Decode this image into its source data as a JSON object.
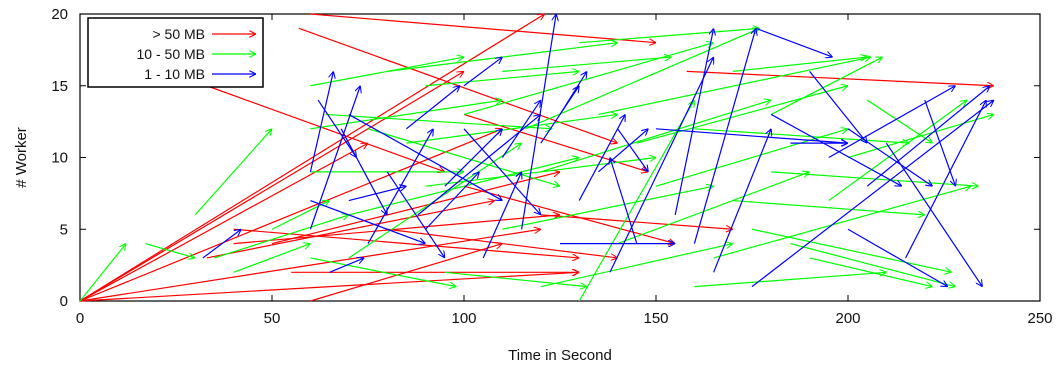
{
  "chart_data": {
    "type": "scatter",
    "title": "",
    "xlabel": "Time in Second",
    "ylabel": "# Worker",
    "xlim": [
      0,
      250
    ],
    "ylim": [
      0,
      20
    ],
    "xticks": [
      0,
      50,
      100,
      150,
      200,
      250
    ],
    "yticks": [
      0,
      5,
      10,
      15,
      20
    ],
    "grid": false,
    "legend_position": "top-left",
    "legend": [
      {
        "label": "> 50 MB",
        "color": "#ff0000"
      },
      {
        "label": "10 - 50 MB",
        "color": "#00ff00"
      },
      {
        "label": "1 - 10 MB",
        "color": "#0000ff"
      }
    ],
    "series": [
      {
        "name": "> 50 MB",
        "color": "#ff0000",
        "arrows": [
          [
            0,
            0,
            75,
            11
          ],
          [
            0,
            0,
            100,
            16
          ],
          [
            0,
            0,
            121,
            20
          ],
          [
            0,
            0,
            110,
            12
          ],
          [
            0,
            0,
            130,
            2
          ],
          [
            0,
            0,
            120,
            5
          ],
          [
            60,
            20,
            150,
            18
          ],
          [
            33,
            15,
            95,
            9
          ],
          [
            33,
            3,
            108,
            7
          ],
          [
            50,
            4,
            125,
            9
          ],
          [
            57,
            19,
            140,
            11
          ],
          [
            158,
            16,
            238,
            15
          ],
          [
            80,
            5,
            140,
            3
          ],
          [
            100,
            13,
            148,
            9
          ],
          [
            40,
            5,
            130,
            3
          ],
          [
            60,
            0,
            110,
            4
          ],
          [
            100,
            8,
            155,
            4
          ],
          [
            120,
            6,
            170,
            5
          ],
          [
            40,
            4,
            125,
            6
          ],
          [
            55,
            2,
            130,
            2
          ]
        ]
      },
      {
        "name": "10 - 50 MB",
        "color": "#00ff00",
        "arrows": [
          [
            0,
            0,
            12,
            4
          ],
          [
            17,
            4,
            30,
            3
          ],
          [
            30,
            6,
            50,
            12
          ],
          [
            35,
            3,
            70,
            6
          ],
          [
            40,
            2,
            60,
            4
          ],
          [
            50,
            5,
            65,
            7
          ],
          [
            60,
            15,
            100,
            17
          ],
          [
            60,
            12,
            110,
            14
          ],
          [
            60,
            9,
            100,
            9
          ],
          [
            64,
            13,
            123,
            12
          ],
          [
            70,
            6,
            130,
            10
          ],
          [
            70,
            3,
            115,
            11
          ],
          [
            80,
            16,
            140,
            18
          ],
          [
            85,
            11,
            140,
            13
          ],
          [
            90,
            8,
            150,
            10
          ],
          [
            100,
            13,
            165,
            18
          ],
          [
            110,
            5,
            165,
            8
          ],
          [
            116,
            12,
            177,
            19
          ],
          [
            120,
            9,
            180,
            14
          ],
          [
            130,
            0,
            160,
            14
          ],
          [
            135,
            13,
            206,
            17
          ],
          [
            140,
            4,
            190,
            9
          ],
          [
            150,
            8,
            200,
            12
          ],
          [
            160,
            12,
            216,
            11
          ],
          [
            165,
            3,
            232,
            8
          ],
          [
            170,
            7,
            220,
            6
          ],
          [
            180,
            9,
            234,
            8
          ],
          [
            180,
            13,
            209,
            17
          ],
          [
            185,
            4,
            228,
            1
          ],
          [
            195,
            7,
            231,
            14
          ],
          [
            200,
            10,
            238,
            13
          ],
          [
            205,
            14,
            222,
            11
          ],
          [
            130,
            18,
            177,
            19
          ],
          [
            110,
            16,
            154,
            17
          ],
          [
            160,
            1,
            210,
            2
          ],
          [
            175,
            5,
            227,
            2
          ],
          [
            120,
            1,
            170,
            4
          ],
          [
            90,
            15,
            130,
            16
          ],
          [
            75,
            12,
            125,
            8
          ],
          [
            145,
            11,
            200,
            15
          ],
          [
            170,
            16,
            205,
            17
          ],
          [
            190,
            3,
            222,
            1
          ],
          [
            60,
            3,
            98,
            1
          ],
          [
            95,
            2,
            132,
            1
          ]
        ]
      },
      {
        "name": "1 - 10 MB",
        "color": "#0000ff",
        "arrows": [
          [
            32,
            3,
            42,
            5
          ],
          [
            60,
            9,
            66,
            16
          ],
          [
            60,
            5,
            73,
            15
          ],
          [
            62,
            14,
            72,
            10
          ],
          [
            65,
            2,
            74,
            3
          ],
          [
            68,
            12,
            80,
            6
          ],
          [
            70,
            7,
            85,
            8
          ],
          [
            75,
            4,
            92,
            12
          ],
          [
            80,
            9,
            95,
            3
          ],
          [
            85,
            12,
            99,
            15
          ],
          [
            90,
            5,
            104,
            9
          ],
          [
            95,
            8,
            110,
            12
          ],
          [
            100,
            15,
            110,
            17
          ],
          [
            105,
            3,
            115,
            9
          ],
          [
            110,
            10,
            120,
            14
          ],
          [
            115,
            5,
            124,
            20
          ],
          [
            120,
            11,
            130,
            15
          ],
          [
            125,
            13,
            132,
            16
          ],
          [
            130,
            7,
            142,
            13
          ],
          [
            135,
            9,
            148,
            12
          ],
          [
            140,
            12,
            148,
            9
          ],
          [
            145,
            4,
            138,
            10
          ],
          [
            155,
            6,
            165,
            19
          ],
          [
            160,
            4,
            176,
            19
          ],
          [
            165,
            2,
            180,
            12
          ],
          [
            176,
            19,
            196,
            17
          ],
          [
            180,
            13,
            214,
            8
          ],
          [
            185,
            11,
            200,
            11
          ],
          [
            190,
            16,
            205,
            11
          ],
          [
            195,
            10,
            228,
            15
          ],
          [
            200,
            5,
            226,
            1
          ],
          [
            205,
            8,
            237,
            15
          ],
          [
            210,
            11,
            235,
            1
          ],
          [
            215,
            3,
            236,
            14
          ],
          [
            220,
            14,
            228,
            8
          ],
          [
            175,
            1,
            238,
            14
          ],
          [
            125,
            4,
            155,
            4
          ],
          [
            70,
            13,
            110,
            7
          ],
          [
            88,
            6,
            120,
            13
          ],
          [
            138,
            2,
            165,
            17
          ],
          [
            100,
            12,
            120,
            6
          ],
          [
            150,
            12,
            200,
            11
          ],
          [
            200,
            12,
            222,
            8
          ],
          [
            60,
            7,
            90,
            4
          ]
        ]
      }
    ]
  }
}
